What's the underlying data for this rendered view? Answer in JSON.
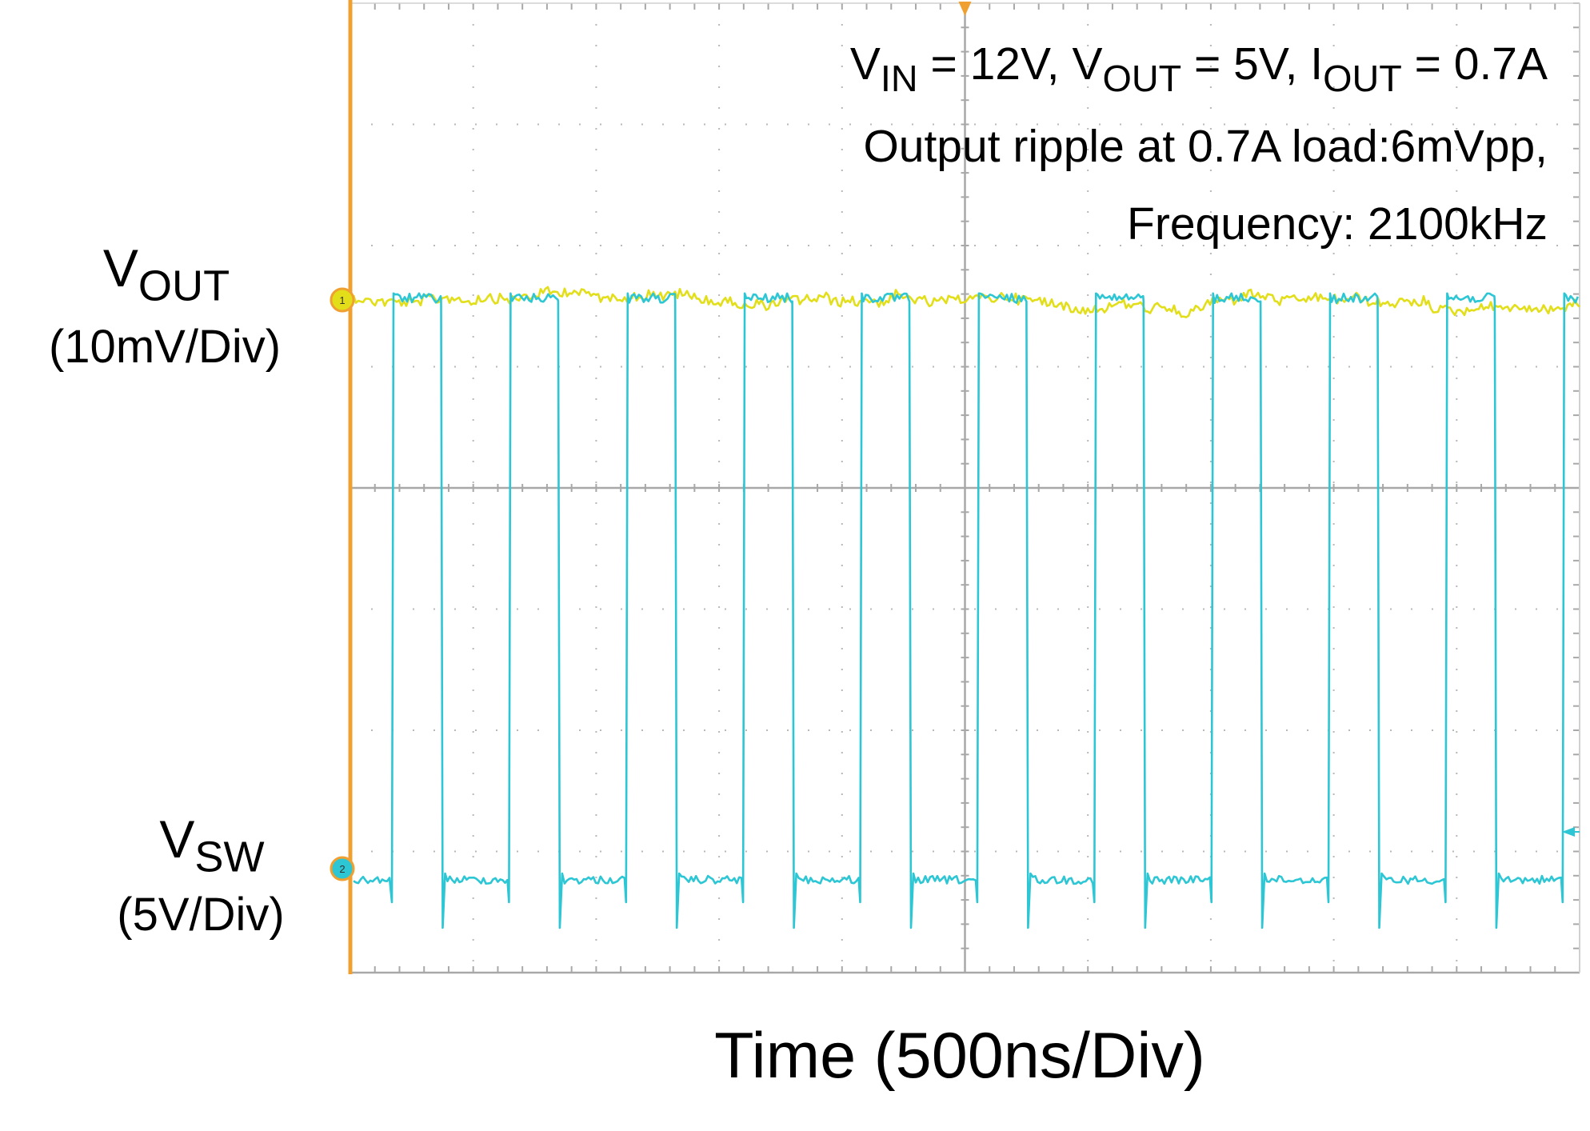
{
  "chart_data": {
    "type": "line",
    "title": "",
    "xlabel": "Time (500ns/Div)",
    "time_per_div_ns": 500,
    "x_divisions": 10,
    "y_divisions": 8,
    "grid": true,
    "annotations": {
      "line1": {
        "v_sym": "V",
        "in_sub": "IN",
        "vin_value": " = 12V, ",
        "vout_sub": "OUT",
        "vout_value": " = 5V, ",
        "i_sym": "I",
        "iout_sub": "OUT",
        "iout_value": " = 0.7A"
      },
      "line2": "Output ripple at 0.7A load:6mVpp,",
      "line3": "Frequency: 2100kHz"
    },
    "series": [
      {
        "id": "ch1",
        "marker": "1",
        "name_main": "V",
        "name_sub": "OUT",
        "scale": "(10mV/Div)",
        "color": "#e2df1a",
        "ripple_mvpp": 6,
        "waveform": "ripple"
      },
      {
        "id": "ch2",
        "marker": "2",
        "name_main": "V",
        "name_sub": "SW",
        "scale": "(5V/Div)",
        "color": "#2cc6d4",
        "frequency_khz": 2100,
        "waveform": "square",
        "high_level_div": 4.8,
        "low_level_div": 0
      }
    ]
  },
  "colors": {
    "frame_left": "#f0a030",
    "grid": "#b8b8b8",
    "axis_center": "#a8a8a8"
  }
}
